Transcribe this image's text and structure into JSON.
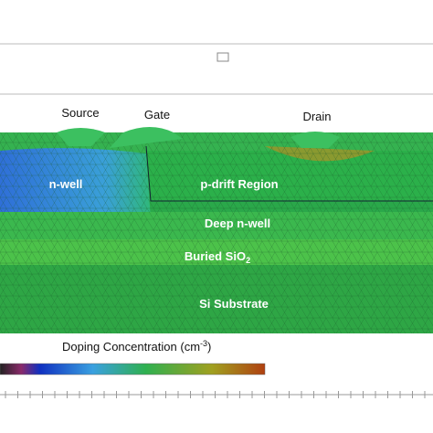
{
  "labels": {
    "source": "Source",
    "gate": "Gate",
    "drain": "Drain",
    "n_well": "n-well",
    "p_drift": "p-drift Region",
    "deep_n_well": "Deep n-well",
    "buried": {
      "text": "Buried SiO",
      "sub": "2"
    },
    "substrate": "Si Substrate"
  },
  "legend": {
    "title": {
      "text": "Doping Concentration (cm",
      "sup": "-3",
      "end": ")"
    }
  }
}
